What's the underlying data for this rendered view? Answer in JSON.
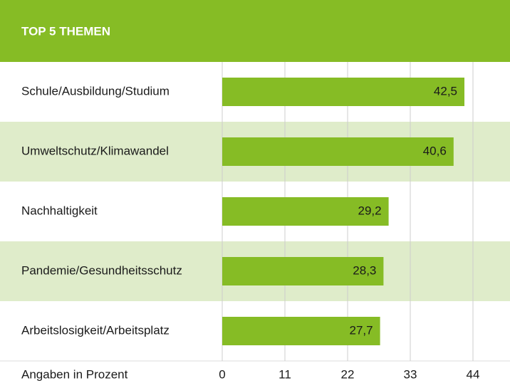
{
  "chart_data": {
    "type": "barh",
    "title": "TOP 5 THEMEN",
    "categories": [
      "Schule/Ausbildung/Studium",
      "Umweltschutz/Klimawandel",
      "Nachhaltigkeit",
      "Pandemie/Gesundheitsschutz",
      "Arbeitslosigkeit/Arbeitsplatz"
    ],
    "values": [
      42.5,
      40.6,
      29.2,
      28.3,
      27.7
    ],
    "value_labels": [
      "42,5",
      "40,6",
      "29,2",
      "28,3",
      "27,7"
    ],
    "color": "#86bc25",
    "x_label": "Angaben in Prozent",
    "xlim": [
      0,
      50
    ],
    "xticks": [
      0,
      11,
      22,
      33,
      44
    ],
    "grid": true
  }
}
